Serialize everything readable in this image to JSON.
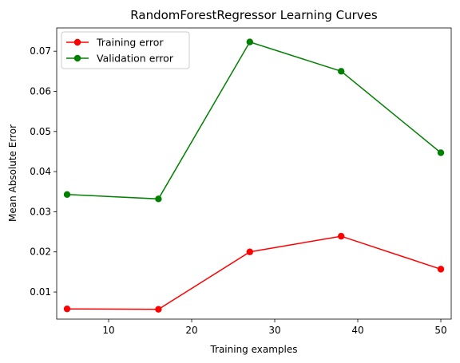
{
  "chart_data": {
    "type": "line",
    "title": "RandomForestRegressor Learning Curves",
    "xlabel": "Training examples",
    "ylabel": "Mean Absolute Error",
    "xlim": [
      3.75,
      51.25
    ],
    "ylim": [
      0.00325,
      0.0758
    ],
    "xticks": [
      10,
      20,
      30,
      40,
      50
    ],
    "xtick_labels": [
      "10",
      "20",
      "30",
      "40",
      "50"
    ],
    "yticks": [
      0.01,
      0.02,
      0.03,
      0.04,
      0.05,
      0.06,
      0.07
    ],
    "ytick_labels": [
      "0.01",
      "0.02",
      "0.03",
      "0.04",
      "0.05",
      "0.06",
      "0.07"
    ],
    "grid": false,
    "legend_position": "top-left",
    "x": [
      5,
      16,
      27,
      38,
      50
    ],
    "series": [
      {
        "name": "Training error",
        "color": "#ff0000",
        "values": [
          0.0058,
          0.0057,
          0.02,
          0.0239,
          0.0157
        ]
      },
      {
        "name": "Validation error",
        "color": "#008000",
        "values": [
          0.0343,
          0.0332,
          0.0723,
          0.065,
          0.0447
        ]
      }
    ]
  }
}
